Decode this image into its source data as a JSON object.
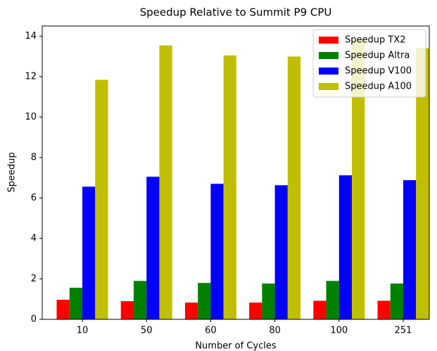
{
  "chart_data": {
    "type": "bar",
    "title": "Speedup Relative to Summit P9 CPU",
    "x_label": "Number of Cycles",
    "y_label": "Speedup",
    "categories": [
      "10",
      "50",
      "60",
      "80",
      "100",
      "251"
    ],
    "series": [
      {
        "name": "Speedup TX2",
        "color": "#ff0000",
        "values": [
          0.97,
          0.9,
          0.83,
          0.83,
          0.92,
          0.92
        ]
      },
      {
        "name": "Speedup Altra",
        "color": "#008000",
        "values": [
          1.56,
          1.9,
          1.8,
          1.77,
          1.9,
          1.77
        ]
      },
      {
        "name": "Speedup V100",
        "color": "#0000ff",
        "values": [
          6.56,
          7.05,
          6.7,
          6.63,
          7.12,
          6.88
        ]
      },
      {
        "name": "Speedup A100",
        "color": "#bfbf00",
        "values": [
          11.84,
          13.54,
          13.05,
          12.99,
          13.8,
          13.4
        ]
      }
    ],
    "ylim": [
      0,
      14.5
    ],
    "yticks": [
      0,
      2,
      4,
      6,
      8,
      10,
      12,
      14
    ],
    "legend": "upper right"
  }
}
